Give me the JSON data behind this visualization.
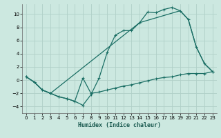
{
  "xlabel": "Humidex (Indice chaleur)",
  "bg_color": "#cce8e0",
  "grid_color": "#b0d0c8",
  "line_color": "#1a6e64",
  "line1_x": [
    0,
    1,
    2,
    3,
    4,
    5,
    6,
    7,
    8,
    9,
    10,
    11,
    12,
    13,
    14,
    15,
    16,
    17,
    18,
    19,
    20,
    21,
    22,
    23
  ],
  "line1_y": [
    0.5,
    -0.3,
    -1.5,
    -2.0,
    -2.5,
    -2.8,
    -3.2,
    -3.8,
    -2.2,
    0.3,
    4.2,
    6.8,
    7.5,
    7.5,
    8.7,
    10.3,
    10.2,
    10.7,
    11.0,
    10.5,
    9.2,
    5.0,
    2.5,
    1.3
  ],
  "line2_x": [
    0,
    1,
    2,
    3,
    4,
    5,
    6,
    7,
    8,
    9,
    10,
    11,
    12,
    13,
    14,
    15,
    16,
    17,
    18,
    19,
    20,
    21,
    22,
    23
  ],
  "line2_y": [
    0.5,
    -0.3,
    -1.5,
    -2.0,
    -2.5,
    -2.8,
    -3.2,
    0.3,
    -2.0,
    -1.8,
    -1.5,
    -1.2,
    -0.9,
    -0.7,
    -0.4,
    -0.1,
    0.2,
    0.4,
    0.5,
    0.8,
    1.0,
    1.0,
    1.0,
    1.3
  ],
  "line3_x": [
    0,
    1,
    2,
    3,
    14,
    19,
    20,
    21,
    22,
    23
  ],
  "line3_y": [
    0.5,
    -0.3,
    -1.5,
    -2.0,
    8.7,
    10.5,
    9.2,
    5.0,
    2.5,
    1.3
  ],
  "ylim": [
    -5,
    11.5
  ],
  "xlim": [
    -0.5,
    23.5
  ],
  "yticks": [
    -4,
    -2,
    0,
    2,
    4,
    6,
    8,
    10
  ],
  "xticks": [
    0,
    1,
    2,
    3,
    4,
    5,
    6,
    7,
    8,
    9,
    10,
    11,
    12,
    13,
    14,
    15,
    16,
    17,
    18,
    19,
    20,
    21,
    22,
    23
  ]
}
